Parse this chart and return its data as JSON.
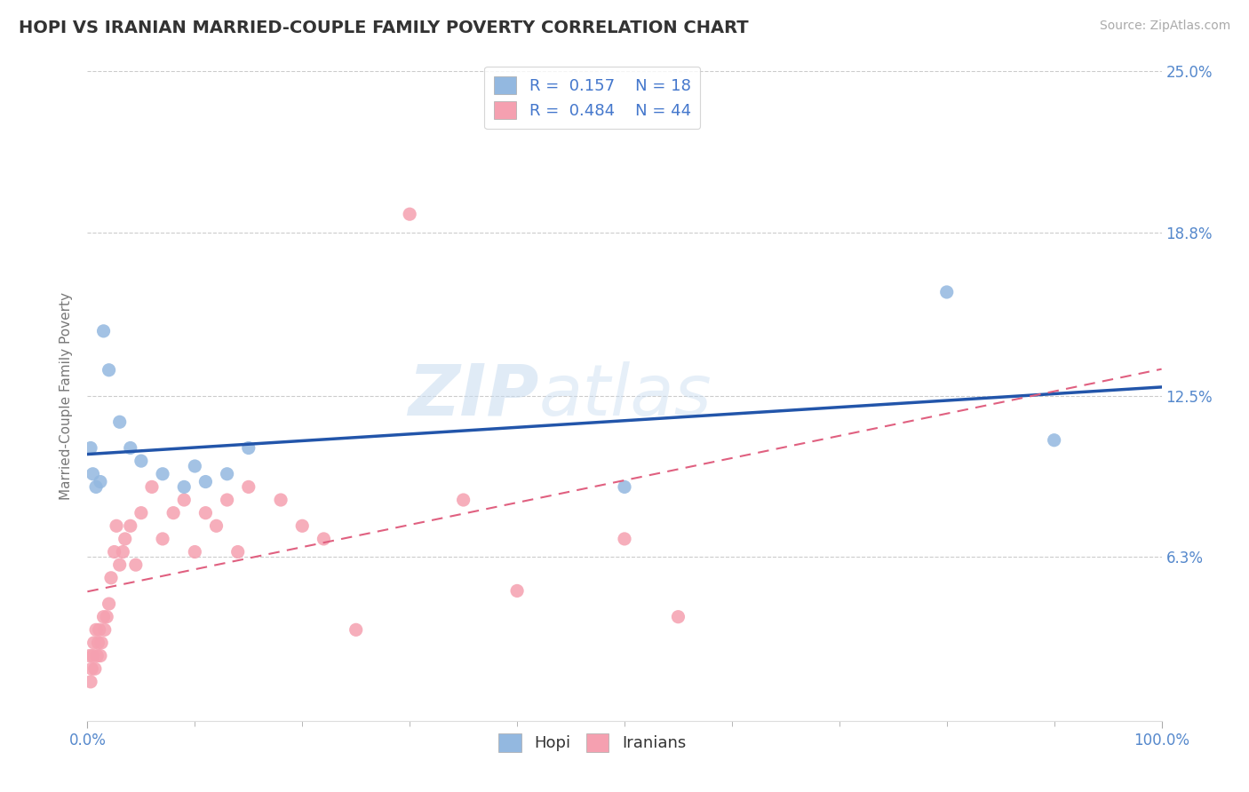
{
  "title": "HOPI VS IRANIAN MARRIED-COUPLE FAMILY POVERTY CORRELATION CHART",
  "source": "Source: ZipAtlas.com",
  "ylabel": "Married-Couple Family Poverty",
  "watermark": "ZIPatlas",
  "hopi_R": 0.157,
  "hopi_N": 18,
  "iranian_R": 0.484,
  "iranian_N": 44,
  "hopi_color": "#93B8E0",
  "iranian_color": "#F5A0B0",
  "hopi_line_color": "#2255AA",
  "iranian_line_color": "#E06080",
  "bg_color": "#ffffff",
  "grid_color": "#cccccc",
  "title_color": "#333333",
  "axis_label_color": "#5588CC",
  "legend_text_color": "#4477CC",
  "hopi_points_x": [
    0.3,
    0.5,
    1.5,
    2.0,
    3.0,
    4.0,
    5.0,
    7.0,
    9.0,
    10.0,
    11.0,
    13.0,
    15.0,
    50.0,
    80.0,
    90.0,
    0.8,
    1.2
  ],
  "hopi_points_y": [
    10.5,
    9.5,
    15.0,
    13.5,
    11.5,
    10.5,
    10.0,
    9.5,
    9.0,
    9.8,
    9.2,
    9.5,
    10.5,
    9.0,
    16.5,
    10.8,
    9.0,
    9.2
  ],
  "iranian_points_x": [
    0.2,
    0.3,
    0.4,
    0.5,
    0.6,
    0.7,
    0.8,
    0.9,
    1.0,
    1.1,
    1.2,
    1.3,
    1.5,
    1.6,
    1.8,
    2.0,
    2.2,
    2.5,
    2.7,
    3.0,
    3.3,
    3.5,
    4.0,
    4.5,
    5.0,
    6.0,
    7.0,
    8.0,
    9.0,
    10.0,
    11.0,
    12.0,
    13.0,
    14.0,
    15.0,
    18.0,
    20.0,
    22.0,
    25.0,
    30.0,
    35.0,
    40.0,
    50.0,
    55.0
  ],
  "iranian_points_y": [
    2.5,
    1.5,
    2.0,
    2.5,
    3.0,
    2.0,
    3.5,
    2.5,
    3.0,
    3.5,
    2.5,
    3.0,
    4.0,
    3.5,
    4.0,
    4.5,
    5.5,
    6.5,
    7.5,
    6.0,
    6.5,
    7.0,
    7.5,
    6.0,
    8.0,
    9.0,
    7.0,
    8.0,
    8.5,
    6.5,
    8.0,
    7.5,
    8.5,
    6.5,
    9.0,
    8.5,
    7.5,
    7.0,
    3.5,
    19.5,
    8.5,
    5.0,
    7.0,
    4.0
  ],
  "xlim": [
    0,
    100
  ],
  "ylim": [
    0,
    25
  ],
  "ytick_values": [
    6.3,
    12.5,
    18.8,
    25.0
  ],
  "xtick_minor": [
    10,
    20,
    30,
    40,
    50,
    60,
    70,
    80,
    90
  ]
}
